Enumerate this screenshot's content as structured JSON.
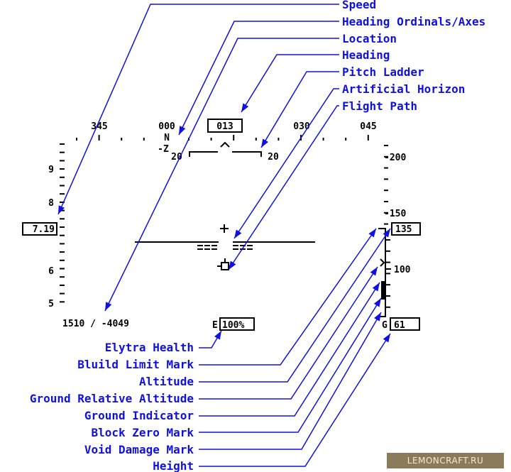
{
  "hud": {
    "heading_tape": {
      "labels": [
        "345",
        "000",
        "030",
        "045"
      ],
      "current_heading": "013",
      "ordinal": "N",
      "axis": "-Z"
    },
    "pitch_ladder": {
      "left": "20",
      "right": "20"
    },
    "speed_tape": {
      "labels": [
        "9",
        "8",
        "6",
        "5"
      ],
      "current_speed": "7.19"
    },
    "altitude_tape": {
      "labels": [
        "-200",
        "-150",
        "100"
      ],
      "current_altitude": "135"
    },
    "location": "1510 / -4049",
    "elytra": {
      "prefix": "E",
      "health": "100%"
    },
    "ground": {
      "prefix": "G",
      "height": "61"
    }
  },
  "callouts_right": [
    "Speed",
    "Heading Ordinals/Axes",
    "Location",
    "Heading",
    "Pitch Ladder",
    "Artificial Horizon",
    "Flight Path"
  ],
  "callouts_bottom": [
    "Elytra Health",
    "Bluild Limit Mark",
    "Altitude",
    "Ground Relative Altitude",
    "Ground Indicator",
    "Block Zero Mark",
    "Void Damage Mark",
    "Height"
  ],
  "watermark": "LEMONCRAFT.RU",
  "colors": {
    "callout": "#1010e0",
    "hud": "#000000",
    "watermark_bg": "#8c7b5b"
  }
}
